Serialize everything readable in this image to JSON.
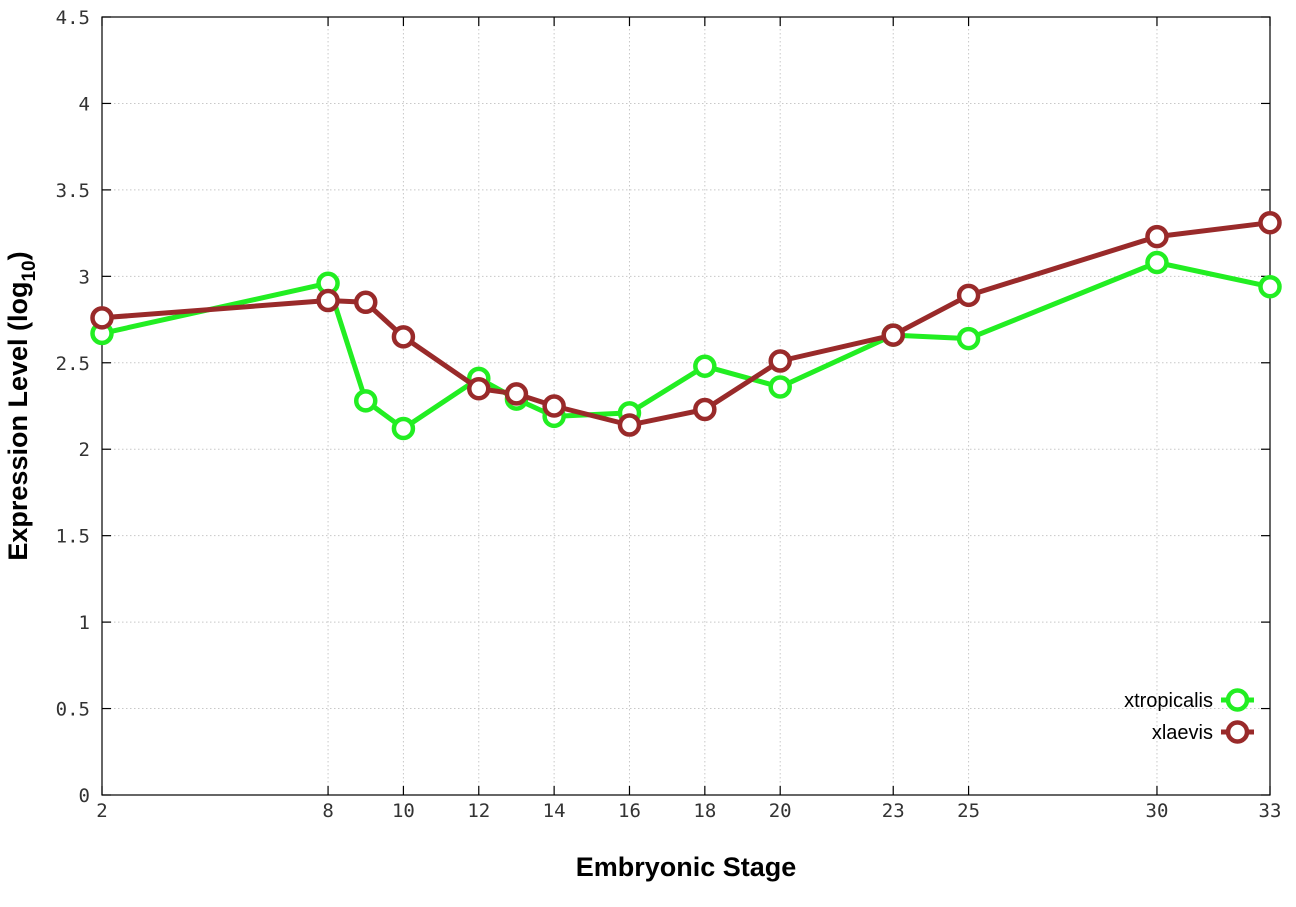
{
  "chart_data": {
    "type": "line",
    "xlabel": "Embryonic Stage",
    "ylabel_main": "Expression Level (log",
    "ylabel_sub": "10",
    "ylabel_close": ")",
    "xlim": [
      2,
      33
    ],
    "ylim": [
      0,
      4.5
    ],
    "x_ticks": [
      2,
      8,
      10,
      12,
      14,
      16,
      18,
      20,
      23,
      25,
      30,
      33
    ],
    "y_ticks": [
      0,
      0.5,
      1,
      1.5,
      2,
      2.5,
      3,
      3.5,
      4,
      4.5
    ],
    "grid": true,
    "legend_position": "bottom-right",
    "x": [
      2,
      8,
      9,
      10,
      12,
      13,
      14,
      16,
      18,
      20,
      23,
      25,
      30,
      33
    ],
    "series": [
      {
        "name": "xtropicalis",
        "color": "#22ee22",
        "values": [
          2.67,
          2.96,
          2.28,
          2.12,
          2.41,
          2.29,
          2.19,
          2.21,
          2.48,
          2.36,
          2.66,
          2.64,
          3.08,
          2.94
        ]
      },
      {
        "name": "xlaevis",
        "color": "#992a2a",
        "values": [
          2.76,
          2.86,
          2.85,
          2.65,
          2.35,
          2.32,
          2.25,
          2.14,
          2.23,
          2.51,
          2.66,
          2.89,
          3.23,
          3.31
        ]
      }
    ]
  }
}
